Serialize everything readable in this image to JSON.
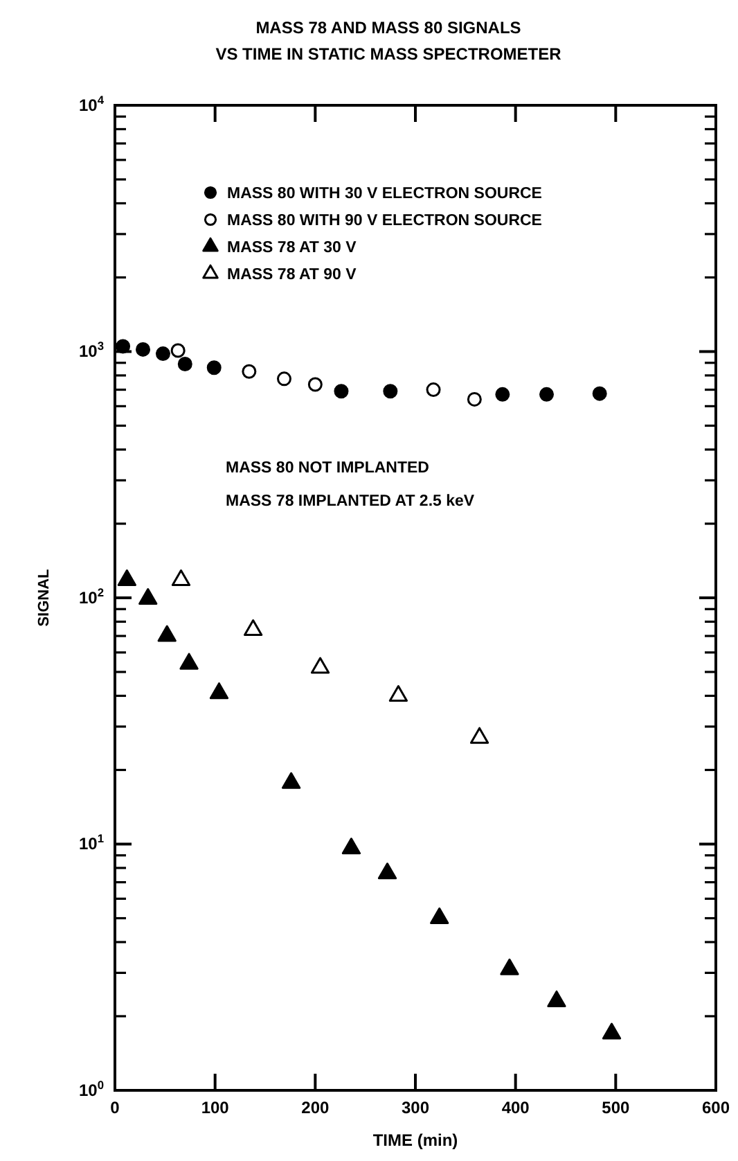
{
  "chart_data": {
    "type": "scatter",
    "title": "MASS 78 AND MASS 80 SIGNALS",
    "subtitle": "VS TIME IN STATIC MASS SPECTROMETER",
    "xlabel": "TIME (min)",
    "ylabel": "SIGNAL",
    "log": "y",
    "xlim": [
      0,
      600
    ],
    "ylim": [
      1,
      10000
    ],
    "xticks": [
      0,
      100,
      200,
      300,
      400,
      500,
      600
    ],
    "yticks": [
      {
        "value": 1,
        "label": "10$^{0}$"
      },
      {
        "value": 2,
        "label": null
      },
      {
        "value": 3,
        "label": null
      },
      {
        "value": 4,
        "label": null
      },
      {
        "value": 5,
        "label": null
      },
      {
        "value": 6,
        "label": null
      },
      {
        "value": 7,
        "label": null
      },
      {
        "value": 8,
        "label": null
      },
      {
        "value": 9,
        "label": null
      },
      {
        "value": 10,
        "label": "10$^{1}$"
      },
      {
        "value": 20,
        "label": null
      },
      {
        "value": 30,
        "label": null
      },
      {
        "value": 40,
        "label": null
      },
      {
        "value": 50,
        "label": null
      },
      {
        "value": 60,
        "label": null
      },
      {
        "value": 70,
        "label": null
      },
      {
        "value": 80,
        "label": null
      },
      {
        "value": 90,
        "label": null
      },
      {
        "value": 100,
        "label": "10$^{2}$"
      },
      {
        "value": 200,
        "label": null
      },
      {
        "value": 300,
        "label": null
      },
      {
        "value": 400,
        "label": null
      },
      {
        "value": 500,
        "label": null
      },
      {
        "value": 600,
        "label": null
      },
      {
        "value": 700,
        "label": null
      },
      {
        "value": 800,
        "label": null
      },
      {
        "value": 900,
        "label": null
      },
      {
        "value": 1000,
        "label": "10$^{3}$"
      },
      {
        "value": 2000,
        "label": null
      },
      {
        "value": 3000,
        "label": null
      },
      {
        "value": 4000,
        "label": null
      },
      {
        "value": 5000,
        "label": null
      },
      {
        "value": 6000,
        "label": null
      },
      {
        "value": 7000,
        "label": null
      },
      {
        "value": 8000,
        "label": null
      },
      {
        "value": 9000,
        "label": null
      },
      {
        "value": 10000,
        "label": "10$^{4}$"
      }
    ],
    "grid": false,
    "legend": "top",
    "annotations": [
      "MASS 80 NOT IMPLANTED",
      "MASS 78 IMPLANTED AT 2.5 keV"
    ],
    "series": [
      {
        "name": "MASS 80 WITH 30 V ELECTRON SOURCE",
        "color": "#000000",
        "marker": "circle",
        "x": [
          8,
          28,
          48,
          70,
          99,
          226,
          275,
          387,
          431,
          484
        ],
        "values": [
          1050,
          1020,
          980,
          890,
          860,
          690,
          690,
          670,
          670,
          675
        ]
      },
      {
        "name": "MASS 80 WITH 90 V ELECTRON SOURCE",
        "color": "#ffffff",
        "marker": "circle",
        "x": [
          63,
          134,
          169,
          200,
          318,
          359
        ],
        "values": [
          1010,
          830,
          775,
          735,
          700,
          640
        ]
      },
      {
        "name": "MASS 78 AT 30 V",
        "color": "#000000",
        "marker": "triangle",
        "x": [
          12,
          33,
          52,
          74,
          104,
          176,
          236,
          272,
          324,
          394,
          441,
          496
        ],
        "values": [
          118,
          99,
          70,
          54,
          41,
          17.7,
          9.6,
          7.6,
          5.0,
          3.1,
          2.3,
          1.7
        ]
      },
      {
        "name": "MASS 78 AT 90 V",
        "color": "#ffffff",
        "marker": "triangle",
        "x": [
          66,
          138,
          205,
          283,
          364
        ],
        "values": [
          118,
          74,
          52,
          40,
          27
        ]
      }
    ]
  }
}
